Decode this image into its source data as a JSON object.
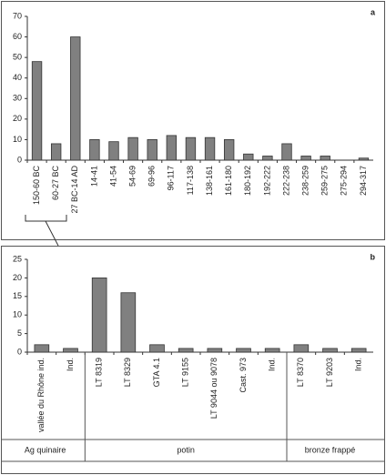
{
  "chart_data": [
    {
      "type": "bar",
      "label": "a",
      "color": "#808080",
      "categories": [
        "150-60 BC",
        "60-27 BC",
        "27 BC-14 AD",
        "14-41",
        "41-54",
        "54-69",
        "69-96",
        "96-117",
        "117-138",
        "138-161",
        "161-180",
        "180-192",
        "192-222",
        "222-238",
        "238-259",
        "259-275",
        "275-294",
        "294-317"
      ],
      "values": [
        48,
        8,
        60,
        10,
        9,
        11,
        10,
        12,
        11,
        11,
        10,
        3,
        2,
        8,
        2,
        2,
        0,
        1
      ],
      "ylim": [
        0,
        70
      ],
      "yticks": [
        0,
        10,
        20,
        30,
        40,
        50,
        60,
        70
      ]
    },
    {
      "type": "bar",
      "label": "b",
      "color": "#808080",
      "categories": [
        "vallée du Rhône ind.",
        "Ind.",
        "LT 8319",
        "LT 8329",
        "GTA 4.1",
        "LT 9155",
        "LT 9044 ou 9078",
        "Cast. 973",
        "Ind.",
        "LT 8370",
        "LT 9203",
        "Ind."
      ],
      "values": [
        2,
        1,
        20,
        16,
        2,
        1,
        1,
        1,
        1,
        2,
        1,
        1
      ],
      "ylim": [
        0,
        25
      ],
      "yticks": [
        0,
        5,
        10,
        15,
        20,
        25
      ],
      "groups": [
        {
          "name": "Ag quinaire",
          "count": 2
        },
        {
          "name": "potin",
          "count": 7
        },
        {
          "name": "bronze frappé",
          "count": 3
        }
      ]
    }
  ]
}
